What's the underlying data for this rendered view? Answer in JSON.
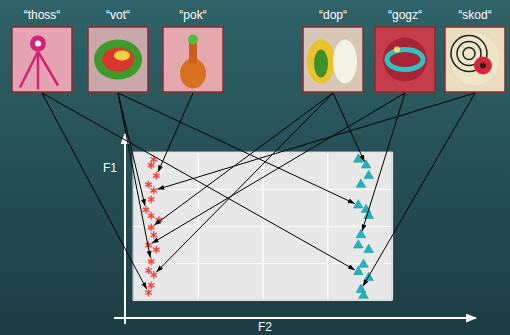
{
  "objects": [
    {
      "label": "“thoss“"
    },
    {
      "label": "“vot“"
    },
    {
      "label": "“pok“"
    },
    {
      "label": "“dop“"
    },
    {
      "label": "“gogz“"
    },
    {
      "label": "“skod“"
    }
  ],
  "chart_data": {
    "type": "scatter",
    "xlabel": "F2",
    "ylabel": "F1",
    "xlim": [
      0,
      100
    ],
    "ylim": [
      0,
      100
    ],
    "xticks": [
      0,
      25,
      50,
      75,
      100
    ],
    "yticks": [
      0,
      25,
      50,
      75,
      100
    ],
    "grid": true,
    "tick_labels": false,
    "series": [
      {
        "color": "#f0473b",
        "marker": "asterisk",
        "x": [
          8,
          7,
          9,
          6,
          8,
          7,
          5,
          7,
          10,
          7,
          8,
          6,
          9,
          7,
          6,
          8,
          7,
          6
        ],
        "values": [
          95,
          91,
          84,
          78,
          74,
          68,
          61,
          57,
          54,
          49,
          44,
          37,
          34,
          26,
          20,
          17,
          10,
          5
        ]
      },
      {
        "color": "#1db4c0",
        "marker": "triangle",
        "x": [
          87,
          90,
          91,
          88,
          87,
          90,
          91,
          88,
          87,
          91,
          89,
          87,
          91,
          88,
          89
        ],
        "values": [
          95,
          91,
          84,
          78,
          64,
          61,
          57,
          44,
          37,
          34,
          24,
          19,
          15,
          7,
          3
        ]
      }
    ]
  }
}
